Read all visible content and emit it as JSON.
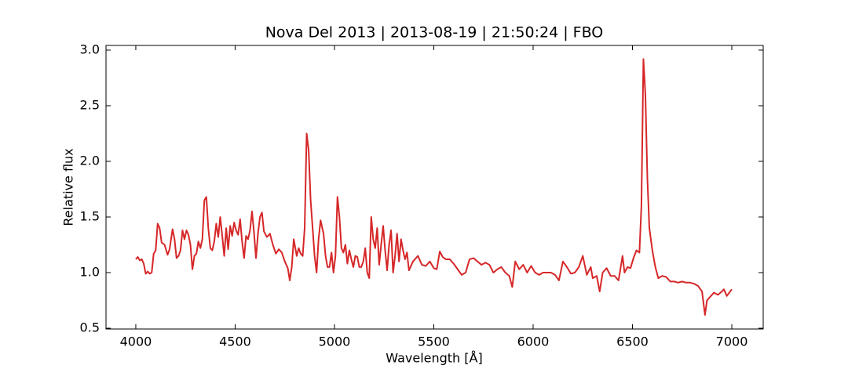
{
  "chart_data": {
    "type": "line",
    "title": "Nova Del 2013 | 2013-08-19 | 21:50:24 | FBO",
    "xlabel": "Wavelength [Å]",
    "ylabel": "Relative flux",
    "xlim": [
      3850,
      7158
    ],
    "ylim": [
      0.493,
      3.042
    ],
    "xticks": [
      4000,
      4500,
      5000,
      5500,
      6000,
      6500,
      7000
    ],
    "yticks": [
      0.5,
      {
        "value": 1.0,
        "label": "1.0"
      },
      1.5,
      {
        "value": 2.0,
        "label": "2.0"
      },
      2.5,
      {
        "value": 3.0,
        "label": "3.0"
      }
    ],
    "series": [
      {
        "color": "#d62728",
        "x": [
          4000,
          4010,
          4020,
          4030,
          4040,
          4050,
          4060,
          4070,
          4080,
          4090,
          4100,
          4110,
          4120,
          4130,
          4145,
          4160,
          4170,
          4185,
          4195,
          4205,
          4215,
          4225,
          4235,
          4245,
          4255,
          4265,
          4275,
          4285,
          4295,
          4305,
          4315,
          4325,
          4335,
          4345,
          4355,
          4365,
          4375,
          4385,
          4395,
          4405,
          4415,
          4425,
          4435,
          4445,
          4455,
          4465,
          4475,
          4485,
          4495,
          4505,
          4515,
          4525,
          4535,
          4545,
          4555,
          4565,
          4575,
          4585,
          4595,
          4605,
          4615,
          4625,
          4635,
          4645,
          4660,
          4675,
          4690,
          4705,
          4720,
          4735,
          4750,
          4765,
          4775,
          4785,
          4795,
          4810,
          4820,
          4830,
          4840,
          4850,
          4860,
          4870,
          4880,
          4890,
          4900,
          4910,
          4920,
          4930,
          4945,
          4955,
          4965,
          4975,
          4985,
          4995,
          5005,
          5015,
          5025,
          5035,
          5045,
          5055,
          5065,
          5075,
          5085,
          5095,
          5105,
          5115,
          5125,
          5135,
          5145,
          5155,
          5165,
          5175,
          5185,
          5195,
          5205,
          5215,
          5225,
          5235,
          5245,
          5255,
          5265,
          5275,
          5285,
          5295,
          5305,
          5315,
          5325,
          5335,
          5345,
          5355,
          5365,
          5375,
          5395,
          5420,
          5440,
          5460,
          5480,
          5500,
          5515,
          5530,
          5545,
          5560,
          5580,
          5600,
          5620,
          5640,
          5660,
          5680,
          5700,
          5720,
          5740,
          5760,
          5780,
          5800,
          5820,
          5840,
          5860,
          5880,
          5895,
          5910,
          5930,
          5950,
          5970,
          5990,
          6010,
          6030,
          6050,
          6070,
          6090,
          6110,
          6130,
          6150,
          6170,
          6190,
          6210,
          6230,
          6250,
          6270,
          6290,
          6300,
          6320,
          6335,
          6350,
          6370,
          6390,
          6410,
          6430,
          6450,
          6460,
          6475,
          6490,
          6505,
          6520,
          6535,
          6545,
          6555,
          6565,
          6575,
          6585,
          6600,
          6615,
          6630,
          6650,
          6670,
          6690,
          6710,
          6730,
          6750,
          6770,
          6790,
          6810,
          6830,
          6850,
          6865,
          6875,
          6890,
          6910,
          6930,
          6950,
          6960,
          6975,
          7000
        ],
        "values": [
          1.12,
          1.14,
          1.11,
          1.12,
          1.08,
          0.99,
          1.01,
          0.99,
          1.0,
          1.17,
          1.2,
          1.44,
          1.4,
          1.27,
          1.25,
          1.16,
          1.21,
          1.39,
          1.3,
          1.13,
          1.15,
          1.2,
          1.38,
          1.3,
          1.38,
          1.34,
          1.25,
          1.03,
          1.15,
          1.17,
          1.28,
          1.22,
          1.3,
          1.65,
          1.68,
          1.4,
          1.22,
          1.2,
          1.28,
          1.44,
          1.32,
          1.5,
          1.33,
          1.15,
          1.4,
          1.21,
          1.42,
          1.33,
          1.45,
          1.38,
          1.34,
          1.48,
          1.28,
          1.13,
          1.33,
          1.3,
          1.38,
          1.55,
          1.36,
          1.13,
          1.35,
          1.5,
          1.54,
          1.37,
          1.32,
          1.35,
          1.25,
          1.17,
          1.21,
          1.18,
          1.1,
          1.04,
          0.93,
          1.05,
          1.3,
          1.15,
          1.22,
          1.17,
          1.15,
          1.4,
          2.25,
          2.1,
          1.65,
          1.4,
          1.15,
          1.0,
          1.3,
          1.47,
          1.35,
          1.15,
          1.05,
          1.05,
          1.18,
          1.0,
          1.15,
          1.68,
          1.5,
          1.22,
          1.18,
          1.25,
          1.08,
          1.2,
          1.12,
          1.05,
          1.15,
          1.14,
          1.05,
          1.05,
          1.1,
          1.22,
          1.0,
          0.95,
          1.5,
          1.3,
          1.22,
          1.4,
          1.07,
          1.25,
          1.42,
          1.2,
          1.02,
          1.25,
          1.38,
          1.0,
          1.15,
          1.35,
          1.1,
          1.3,
          1.2,
          1.12,
          1.18,
          1.02,
          1.1,
          1.15,
          1.07,
          1.06,
          1.1,
          1.04,
          1.03,
          1.19,
          1.14,
          1.12,
          1.12,
          1.08,
          1.03,
          0.98,
          1.0,
          1.12,
          1.13,
          1.1,
          1.07,
          1.09,
          1.07,
          1.0,
          1.03,
          1.05,
          1.0,
          0.97,
          0.87,
          1.1,
          1.03,
          1.07,
          1.0,
          1.06,
          1.0,
          0.98,
          1.0,
          1.0,
          1.0,
          0.98,
          0.93,
          1.1,
          1.05,
          0.99,
          1.0,
          1.05,
          1.15,
          0.98,
          1.05,
          0.95,
          0.97,
          0.83,
          1.0,
          1.04,
          0.97,
          0.97,
          0.93,
          1.15,
          1.0,
          1.05,
          1.04,
          1.13,
          1.2,
          1.18,
          1.6,
          2.92,
          2.6,
          1.85,
          1.4,
          1.2,
          1.05,
          0.95,
          0.97,
          0.96,
          0.92,
          0.92,
          0.91,
          0.92,
          0.91,
          0.91,
          0.9,
          0.88,
          0.83,
          0.62,
          0.75,
          0.78,
          0.82,
          0.8,
          0.83,
          0.85,
          0.79,
          0.85
        ]
      }
    ]
  }
}
